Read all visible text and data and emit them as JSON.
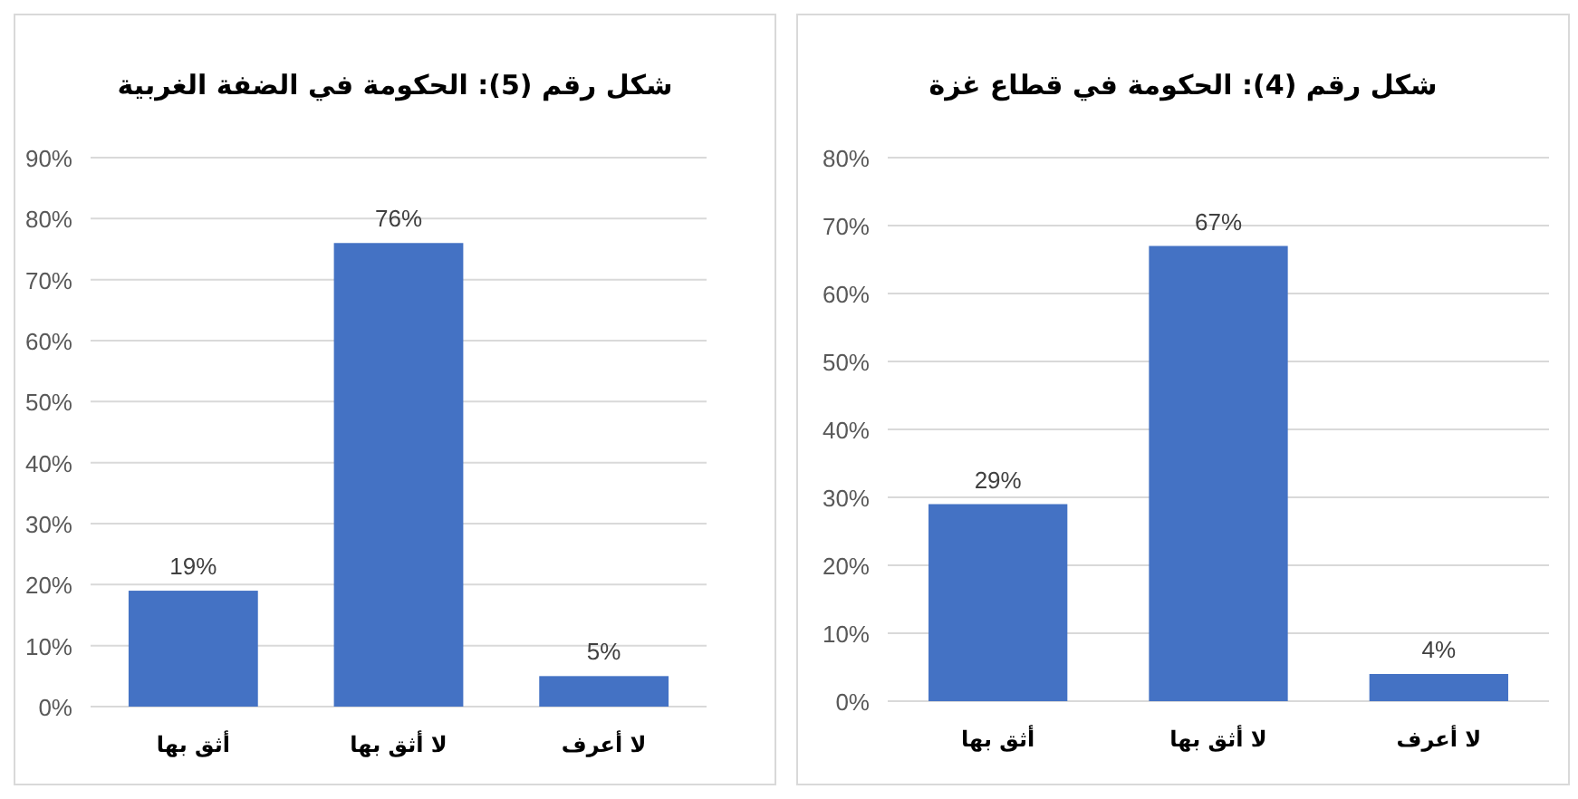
{
  "chart_data": [
    {
      "type": "bar",
      "title": "شكل رقم (5): الحكومة في الضفة الغربية",
      "categories": [
        "أثق بها",
        "لا أثق بها",
        "لا أعرف"
      ],
      "values": [
        19,
        76,
        5
      ],
      "value_labels": [
        "19%",
        "76%",
        "5%"
      ],
      "color": "#4472c4",
      "ylim": [
        0,
        90
      ],
      "yticks": [
        {
          "value": 0,
          "label": "0%"
        },
        {
          "value": 10,
          "label": "10%"
        },
        {
          "value": 20,
          "label": "20%"
        },
        {
          "value": 30,
          "label": "30%"
        },
        {
          "value": 40,
          "label": "40%"
        },
        {
          "value": 50,
          "label": "50%"
        },
        {
          "value": 60,
          "label": "60%"
        },
        {
          "value": 70,
          "label": "70%"
        },
        {
          "value": 80,
          "label": "80%"
        },
        {
          "value": 90,
          "label": "90%"
        }
      ],
      "grid": "y"
    },
    {
      "type": "bar",
      "title": "شكل رقم (4): الحكومة في قطاع غزة",
      "categories": [
        "أثق بها",
        "لا أثق بها",
        "لا أعرف"
      ],
      "values": [
        29,
        67,
        4
      ],
      "value_labels": [
        "29%",
        "67%",
        "4%"
      ],
      "color": "#4472c4",
      "ylim": [
        0,
        80
      ],
      "yticks": [
        {
          "value": 0,
          "label": "0%"
        },
        {
          "value": 10,
          "label": "10%"
        },
        {
          "value": 20,
          "label": "20%"
        },
        {
          "value": 30,
          "label": "30%"
        },
        {
          "value": 40,
          "label": "40%"
        },
        {
          "value": 50,
          "label": "50%"
        },
        {
          "value": 60,
          "label": "60%"
        },
        {
          "value": 70,
          "label": "70%"
        },
        {
          "value": 80,
          "label": "80%"
        }
      ],
      "grid": "y"
    }
  ]
}
